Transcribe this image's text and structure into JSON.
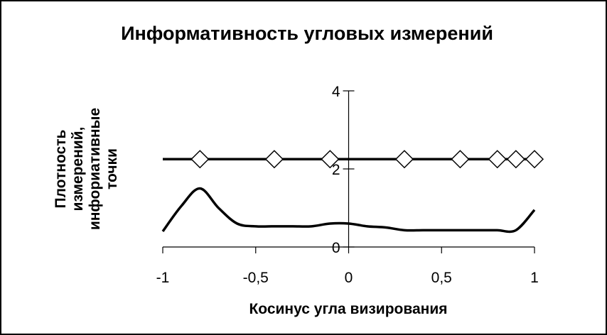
{
  "chart_data": {
    "type": "line",
    "title": "Информативность угловых измерений",
    "xlabel": "Косинус угла визирования",
    "ylabel_lines": [
      "Плотность",
      "измерений,",
      "инфориативные",
      "точки"
    ],
    "xlim": [
      -1,
      1
    ],
    "ylim": [
      0,
      4
    ],
    "x_tick_labels": [
      "-1",
      "-0,5",
      "0",
      "0,5",
      "1"
    ],
    "x_tick_values": [
      -1,
      -0.5,
      0,
      0.5,
      1
    ],
    "y_tick_labels": [
      "0",
      "2",
      "4"
    ],
    "y_tick_values": [
      0,
      2,
      4
    ],
    "grid": false,
    "legend": "none",
    "series": [
      {
        "style": "line with diamond markers",
        "line_x": [
          -1,
          1
        ],
        "line_y": [
          2.25,
          2.25
        ],
        "marker_x": [
          -0.8,
          -0.4,
          -0.1,
          0.3,
          0.6,
          0.8,
          0.9,
          1.0
        ],
        "marker_y": [
          2.25,
          2.25,
          2.25,
          2.25,
          2.25,
          2.25,
          2.25,
          2.25
        ]
      },
      {
        "style": "smooth line",
        "x": [
          -1,
          -0.9,
          -0.8,
          -0.7,
          -0.6,
          -0.5,
          -0.4,
          -0.3,
          -0.2,
          -0.1,
          0,
          0.1,
          0.2,
          0.3,
          0.4,
          0.5,
          0.6,
          0.7,
          0.8,
          0.9,
          1.0
        ],
        "y": [
          0.4,
          1.05,
          1.5,
          1.0,
          0.6,
          0.53,
          0.53,
          0.53,
          0.53,
          0.6,
          0.6,
          0.53,
          0.5,
          0.43,
          0.43,
          0.43,
          0.43,
          0.43,
          0.43,
          0.43,
          0.95
        ]
      }
    ]
  }
}
